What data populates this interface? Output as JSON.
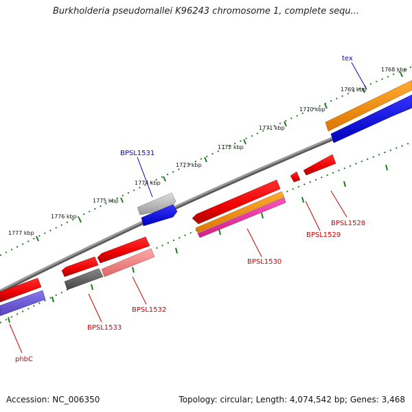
{
  "header": {
    "title": "Burkholderia pseudomallei K96243 chromosome 1, complete sequ..."
  },
  "footer": {
    "accession": "Accession: NC_006350",
    "summary": "Topology: circular; Length: 4,074,542 bp; Genes: 3,468"
  },
  "scale": {
    "kbp_labels": [
      "1768 kbp",
      "1769 kbp",
      "1770 kbp",
      "1771 kbp",
      "1772 kbp",
      "1773 kbp",
      "1774 kbp",
      "1775 kbp",
      "1776 kbp",
      "1777 kbp"
    ]
  },
  "genes": [
    {
      "name": "tex",
      "strand": "forward",
      "color": "#0000cc"
    },
    {
      "name": "BPSL1531",
      "strand": "forward",
      "color": "#0000cc"
    },
    {
      "name": "BPSL1528",
      "strand": "reverse",
      "color": "#cc0000"
    },
    {
      "name": "BPSL1529",
      "strand": "reverse",
      "color": "#cc0000"
    },
    {
      "name": "BPSL1530",
      "strand": "reverse",
      "color": "#cc0000"
    },
    {
      "name": "BPSL1532",
      "strand": "reverse",
      "color": "#cc0000"
    },
    {
      "name": "BPSL1533",
      "strand": "reverse",
      "color": "#cc0000"
    },
    {
      "name": "phbC",
      "strand": "reverse",
      "color": "#cc0000"
    }
  ],
  "colors": {
    "backbone": "#808080",
    "tick": "#1a7a1a",
    "forward_label": "#0000cc",
    "reverse_label": "#cc0000"
  }
}
